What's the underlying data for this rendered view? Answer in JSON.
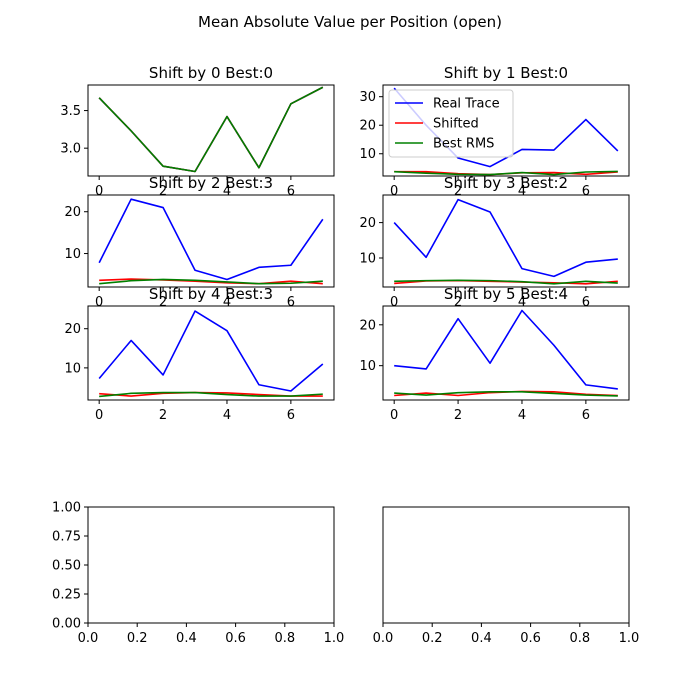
{
  "suptitle": "Mean Absolute Value per Position (open)",
  "colors": {
    "real_trace": "#0000ff",
    "shifted": "#ff0000",
    "best_rms": "#008000"
  },
  "chart_data": [
    {
      "type": "line",
      "title": "Shift by 0 Best:0",
      "x": [
        0,
        1,
        2,
        3,
        4,
        5,
        6,
        7
      ],
      "xticks": [
        0,
        2,
        4,
        6
      ],
      "xlim": [
        -0.35,
        7.35
      ],
      "ylim": [
        2.63,
        3.84
      ],
      "yticks": [
        3.0,
        3.5
      ],
      "ytick_labels": [
        "3.0",
        "3.5"
      ],
      "series": [
        {
          "name": "Real Trace",
          "color": "#0000ff",
          "values": [
            3.67,
            3.23,
            2.76,
            2.69,
            3.42,
            2.74,
            3.59,
            3.81
          ]
        },
        {
          "name": "Shifted",
          "color": "#ff0000",
          "values": [
            3.67,
            3.23,
            2.76,
            2.69,
            3.42,
            2.74,
            3.59,
            3.81
          ]
        },
        {
          "name": "Best RMS",
          "color": "#008000",
          "values": [
            3.67,
            3.23,
            2.76,
            2.69,
            3.42,
            2.74,
            3.59,
            3.81
          ]
        }
      ]
    },
    {
      "type": "line",
      "title": "Shift by 1 Best:0",
      "x": [
        0,
        1,
        2,
        3,
        4,
        5,
        6,
        7
      ],
      "xticks": [
        0,
        2,
        4,
        6
      ],
      "xlim": [
        -0.35,
        7.35
      ],
      "ylim": [
        2.2,
        34.1
      ],
      "yticks": [
        10,
        20,
        30
      ],
      "ytick_labels": [
        "10",
        "20",
        "30"
      ],
      "legend": {
        "placement": "upper-left",
        "entries": [
          "Real Trace",
          "Shifted",
          "Best RMS"
        ]
      },
      "series": [
        {
          "name": "Real Trace",
          "color": "#0000ff",
          "values": [
            33.0,
            20.0,
            8.5,
            5.5,
            11.5,
            11.3,
            22.0,
            11.0
          ]
        },
        {
          "name": "Shifted",
          "color": "#ff0000",
          "values": [
            3.7,
            3.7,
            3.0,
            2.7,
            3.3,
            3.4,
            2.8,
            3.6
          ]
        },
        {
          "name": "Best RMS",
          "color": "#008000",
          "values": [
            3.7,
            3.2,
            2.8,
            2.7,
            3.4,
            2.7,
            3.6,
            3.8
          ]
        }
      ]
    },
    {
      "type": "line",
      "title": "Shift by 2 Best:3",
      "x": [
        0,
        1,
        2,
        3,
        4,
        5,
        6,
        7
      ],
      "xticks": [
        0,
        2,
        4,
        6
      ],
      "xlim": [
        -0.35,
        7.35
      ],
      "ylim": [
        2.0,
        24.0
      ],
      "yticks": [
        10,
        20
      ],
      "ytick_labels": [
        "10",
        "20"
      ],
      "series": [
        {
          "name": "Real Trace",
          "color": "#0000ff",
          "values": [
            7.8,
            23.0,
            21.0,
            6.0,
            3.8,
            6.7,
            7.2,
            18.2
          ]
        },
        {
          "name": "Shifted",
          "color": "#ff0000",
          "values": [
            3.6,
            3.9,
            3.7,
            3.4,
            3.0,
            2.8,
            3.4,
            2.8
          ]
        },
        {
          "name": "Best RMS",
          "color": "#008000",
          "values": [
            2.8,
            3.5,
            3.8,
            3.6,
            3.2,
            2.8,
            2.9,
            3.4
          ]
        }
      ]
    },
    {
      "type": "line",
      "title": "Shift by 3 Best:2",
      "x": [
        0,
        1,
        2,
        3,
        4,
        5,
        6,
        7
      ],
      "xticks": [
        0,
        2,
        4,
        6
      ],
      "xlim": [
        -0.35,
        7.35
      ],
      "ylim": [
        1.8,
        27.8
      ],
      "yticks": [
        10,
        20
      ],
      "ytick_labels": [
        "10",
        "20"
      ],
      "series": [
        {
          "name": "Real Trace",
          "color": "#0000ff",
          "values": [
            20.0,
            10.2,
            26.5,
            23.0,
            7.0,
            4.8,
            8.8,
            9.7
          ]
        },
        {
          "name": "Shifted",
          "color": "#ff0000",
          "values": [
            2.8,
            3.5,
            3.6,
            3.4,
            3.2,
            3.0,
            2.7,
            3.4
          ]
        },
        {
          "name": "Best RMS",
          "color": "#008000",
          "values": [
            3.4,
            3.6,
            3.7,
            3.6,
            3.3,
            2.7,
            3.4,
            2.9
          ]
        }
      ]
    },
    {
      "type": "line",
      "title": "Shift by 4 Best:3",
      "x": [
        0,
        1,
        2,
        3,
        4,
        5,
        6,
        7
      ],
      "xticks": [
        0,
        2,
        4,
        6
      ],
      "xlim": [
        -0.35,
        7.35
      ],
      "ylim": [
        1.8,
        25.8
      ],
      "yticks": [
        10,
        20
      ],
      "ytick_labels": [
        "10",
        "20"
      ],
      "series": [
        {
          "name": "Real Trace",
          "color": "#0000ff",
          "values": [
            7.3,
            17.0,
            8.2,
            24.5,
            19.5,
            5.7,
            4.1,
            11.0
          ]
        },
        {
          "name": "Shifted",
          "color": "#ff0000",
          "values": [
            3.4,
            2.8,
            3.5,
            3.7,
            3.6,
            3.2,
            2.8,
            2.8
          ]
        },
        {
          "name": "Best RMS",
          "color": "#008000",
          "values": [
            2.7,
            3.5,
            3.7,
            3.7,
            3.2,
            2.8,
            2.8,
            3.3
          ]
        }
      ]
    },
    {
      "type": "line",
      "title": "Shift by 5 Best:4",
      "x": [
        0,
        1,
        2,
        3,
        4,
        5,
        6,
        7
      ],
      "xticks": [
        0,
        2,
        4,
        6
      ],
      "xlim": [
        -0.35,
        7.35
      ],
      "ylim": [
        1.6,
        24.6
      ],
      "yticks": [
        10,
        20
      ],
      "ytick_labels": [
        "10",
        "20"
      ],
      "series": [
        {
          "name": "Real Trace",
          "color": "#0000ff",
          "values": [
            10.0,
            9.2,
            21.5,
            10.6,
            23.5,
            15.0,
            5.3,
            4.3
          ]
        },
        {
          "name": "Shifted",
          "color": "#ff0000",
          "values": [
            2.7,
            3.3,
            2.7,
            3.4,
            3.7,
            3.6,
            3.0,
            2.7
          ]
        },
        {
          "name": "Best RMS",
          "color": "#008000",
          "values": [
            3.3,
            2.8,
            3.4,
            3.6,
            3.6,
            3.2,
            2.8,
            2.6
          ]
        }
      ]
    },
    {
      "type": "line",
      "title": "",
      "xlim": [
        0,
        1
      ],
      "ylim": [
        0,
        1
      ],
      "xticks": [
        0.0,
        0.2,
        0.4,
        0.6,
        0.8,
        1.0
      ],
      "xtick_labels": [
        "0.0",
        "0.2",
        "0.4",
        "0.6",
        "0.8",
        "1.0"
      ],
      "yticks": [
        0.0,
        0.25,
        0.5,
        0.75,
        1.0
      ],
      "ytick_labels": [
        "0.00",
        "0.25",
        "0.50",
        "0.75",
        "1.00"
      ],
      "series": []
    },
    {
      "type": "line",
      "title": "",
      "xlim": [
        0,
        1
      ],
      "ylim": [
        0,
        1
      ],
      "xticks": [
        0.0,
        0.2,
        0.4,
        0.6,
        0.8,
        1.0
      ],
      "xtick_labels": [
        "0.0",
        "0.2",
        "0.4",
        "0.6",
        "0.8",
        "1.0"
      ],
      "series": []
    }
  ]
}
